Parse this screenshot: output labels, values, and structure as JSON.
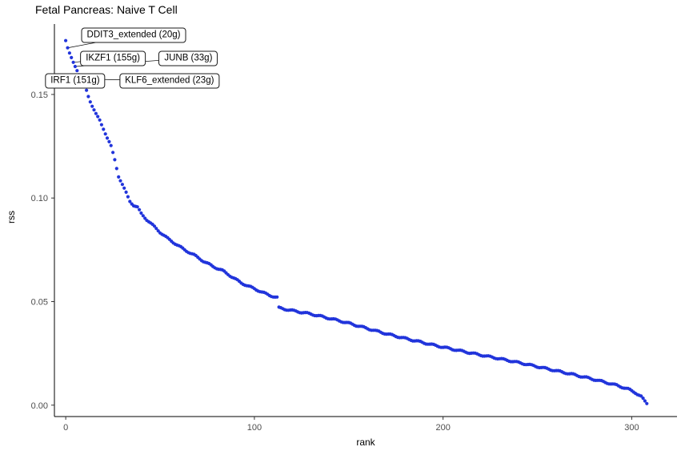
{
  "chart_data": {
    "type": "scatter",
    "title": "Fetal Pancreas: Naive T Cell",
    "xlabel": "rank",
    "ylabel": "rss",
    "legend": "none",
    "grid": false,
    "point_color": "#2134db",
    "axis_line_color": "#000000",
    "tick_label_color": "#4d4d4d",
    "xlim": [
      -6,
      324
    ],
    "ylim": [
      -0.0055,
      0.184
    ],
    "x_ticks": [
      0,
      100,
      200,
      300
    ],
    "x_tick_labels": [
      "0",
      "100",
      "200",
      "300"
    ],
    "y_ticks": [
      0,
      0.05,
      0.1,
      0.15
    ],
    "y_tick_labels": [
      "0.00",
      "0.05",
      "0.10",
      "0.15"
    ],
    "n_points": 309,
    "series_name": "regulon specificity score by rank",
    "curve_anchors": [
      [
        0,
        0.176
      ],
      [
        1,
        0.1725
      ],
      [
        2,
        0.17
      ],
      [
        3,
        0.1678
      ],
      [
        4,
        0.1655
      ],
      [
        5,
        0.1635
      ],
      [
        6,
        0.1615
      ],
      [
        7,
        0.1595
      ],
      [
        8,
        0.1575
      ],
      [
        9,
        0.156
      ],
      [
        10,
        0.155
      ],
      [
        11,
        0.152
      ],
      [
        12,
        0.149
      ],
      [
        14,
        0.1445
      ],
      [
        16,
        0.1405
      ],
      [
        18,
        0.1375
      ],
      [
        20,
        0.1335
      ],
      [
        22,
        0.129
      ],
      [
        24,
        0.125
      ],
      [
        26,
        0.1185
      ],
      [
        28,
        0.1105
      ],
      [
        30,
        0.1065
      ],
      [
        32,
        0.1025
      ],
      [
        34,
        0.0985
      ],
      [
        36,
        0.0965
      ],
      [
        38,
        0.0955
      ],
      [
        40,
        0.0925
      ],
      [
        43,
        0.0895
      ],
      [
        46,
        0.087
      ],
      [
        50,
        0.0835
      ],
      [
        54,
        0.0805
      ],
      [
        58,
        0.078
      ],
      [
        63,
        0.075
      ],
      [
        68,
        0.0725
      ],
      [
        73,
        0.0695
      ],
      [
        78,
        0.067
      ],
      [
        83,
        0.065
      ],
      [
        88,
        0.062
      ],
      [
        93,
        0.059
      ],
      [
        98,
        0.057
      ],
      [
        103,
        0.055
      ],
      [
        108,
        0.053
      ],
      [
        112,
        0.052
      ],
      [
        113,
        0.047
      ],
      [
        118,
        0.046
      ],
      [
        124,
        0.045
      ],
      [
        130,
        0.044
      ],
      [
        137,
        0.0425
      ],
      [
        144,
        0.041
      ],
      [
        151,
        0.0393
      ],
      [
        158,
        0.0375
      ],
      [
        165,
        0.0357
      ],
      [
        172,
        0.034
      ],
      [
        180,
        0.0322
      ],
      [
        188,
        0.0305
      ],
      [
        196,
        0.0288
      ],
      [
        204,
        0.0272
      ],
      [
        212,
        0.0257
      ],
      [
        220,
        0.0242
      ],
      [
        228,
        0.0228
      ],
      [
        236,
        0.0213
      ],
      [
        244,
        0.0198
      ],
      [
        252,
        0.0182
      ],
      [
        260,
        0.0166
      ],
      [
        268,
        0.015
      ],
      [
        276,
        0.0133
      ],
      [
        284,
        0.0115
      ],
      [
        292,
        0.0096
      ],
      [
        298,
        0.0078
      ],
      [
        302,
        0.006
      ],
      [
        305,
        0.0042
      ],
      [
        306,
        0.003
      ],
      [
        307,
        0.0018
      ],
      [
        308,
        0.0008
      ]
    ],
    "annotations": [
      {
        "text": "DDIT3_extended (20g)",
        "box": {
          "rank": 36,
          "rss": 0.1785
        },
        "point": {
          "rank": 1,
          "rss": 0.1725
        }
      },
      {
        "text": "IKZF1 (155g)",
        "box": {
          "rank": 25,
          "rss": 0.1675
        },
        "point": {
          "rank": 4,
          "rss": 0.1655
        }
      },
      {
        "text": "JUNB (33g)",
        "box": {
          "rank": 65,
          "rss": 0.1675
        },
        "point": {
          "rank": 5,
          "rss": 0.1635
        }
      },
      {
        "text": "IRF1 (151g)",
        "box": {
          "rank": 5,
          "rss": 0.1565
        },
        "point": {
          "rank": 7,
          "rss": 0.1595
        }
      },
      {
        "text": "KLF6_extended (23g)",
        "box": {
          "rank": 55,
          "rss": 0.1565
        },
        "point": {
          "rank": 8,
          "rss": 0.1575
        }
      }
    ]
  }
}
